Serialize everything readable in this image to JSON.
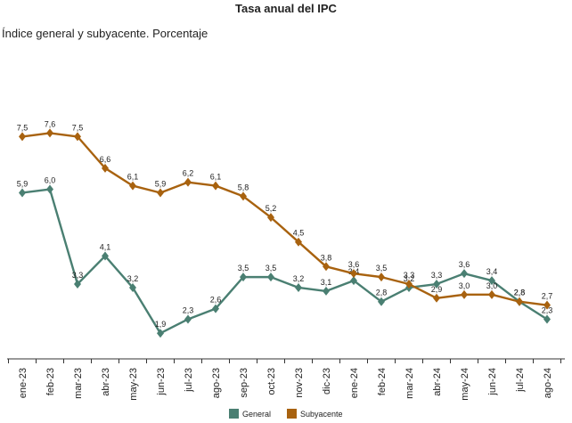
{
  "chart_data": {
    "type": "line",
    "title": "Tasa anual del IPC",
    "subtitle": "Índice general y subyacente. Porcentaje",
    "categories": [
      "ene-23",
      "feb-23",
      "mar-23",
      "abr-23",
      "may-23",
      "jun-23",
      "jul-23",
      "ago-23",
      "sep-23",
      "oct-23",
      "nov-23",
      "dic-23",
      "ene-24",
      "feb-24",
      "mar-24",
      "abr-24",
      "may-24",
      "jun-24",
      "jul-24",
      "ago-24"
    ],
    "series": [
      {
        "name": "General",
        "color": "#4a7f72",
        "values": [
          5.9,
          6.0,
          3.3,
          4.1,
          3.2,
          1.9,
          2.3,
          2.6,
          3.5,
          3.5,
          3.2,
          3.1,
          3.4,
          2.8,
          3.2,
          3.3,
          3.6,
          3.4,
          2.8,
          2.3
        ],
        "labels": [
          "5,9",
          "6,0",
          "3,3",
          "4,1",
          "3,2",
          "1,9",
          "2,3",
          "2,6",
          "3,5",
          "3,5",
          "3,2",
          "3,1",
          "3,4",
          "2,8",
          "3,2",
          "3,3",
          "3,6",
          "3,4",
          "2,8",
          "2,3"
        ]
      },
      {
        "name": "Subyacente",
        "color": "#a8620f",
        "values": [
          7.5,
          7.6,
          7.5,
          6.6,
          6.1,
          5.9,
          6.2,
          6.1,
          5.8,
          5.2,
          4.5,
          3.8,
          3.6,
          3.5,
          3.3,
          2.9,
          3.0,
          3.0,
          2.8,
          2.7
        ],
        "labels": [
          "7,5",
          "7,6",
          "7,5",
          "6,6",
          "6,1",
          "5,9",
          "6,2",
          "6,1",
          "5,8",
          "5,2",
          "4,5",
          "3,8",
          "3,6",
          "3,5",
          "3,3",
          "2,9",
          "3,0",
          "3,0",
          "2,8",
          "2,7"
        ]
      }
    ],
    "ylim": [
      1.5,
      8.6
    ],
    "grid": false,
    "legend_position": "bottom-center"
  }
}
